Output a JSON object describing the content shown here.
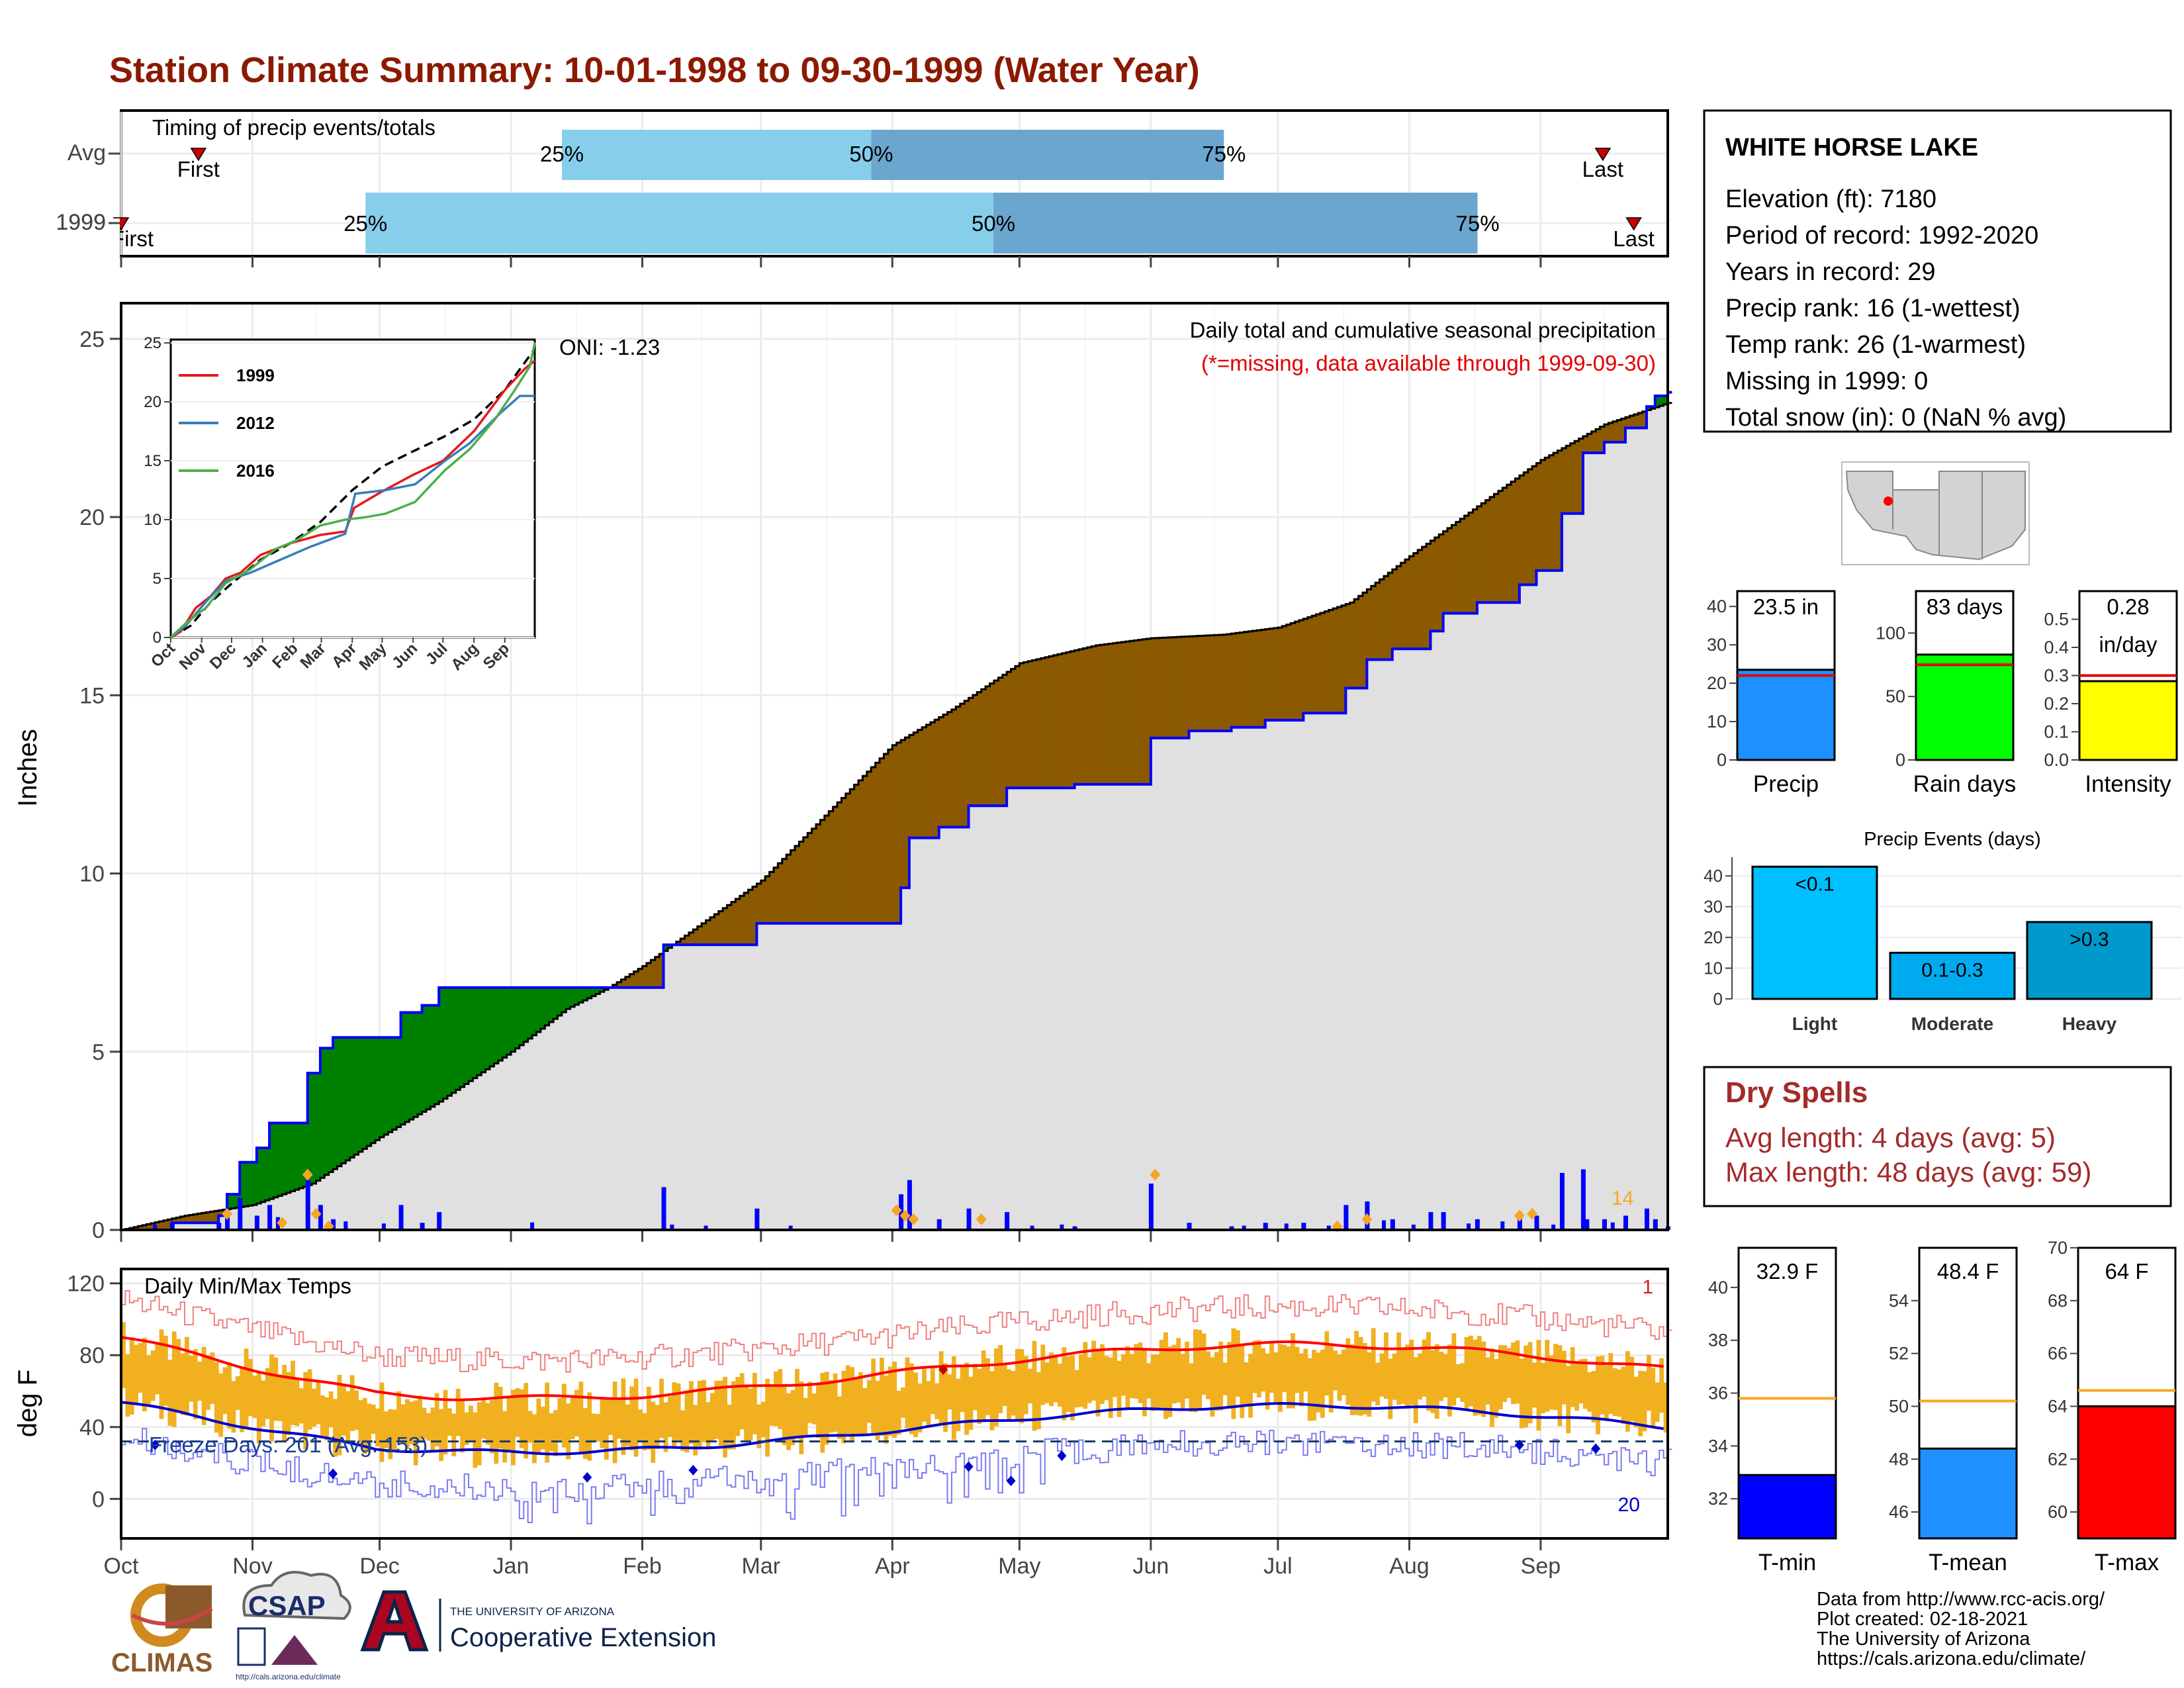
{
  "title": "Station Climate Summary: 10-01-1998 to 09-30-1999 (Water Year)",
  "timing": {
    "heading": "Timing of precip events/totals",
    "rows": [
      {
        "label": "Avg",
        "first_label": "First",
        "last_label": "Last",
        "first_x": 0.05,
        "last_x": 0.958,
        "q25": 0.285,
        "q50": 0.485,
        "q75": 0.713
      },
      {
        "label": "1999",
        "first_label": "First",
        "last_label": "Last",
        "first_x": 0.0,
        "last_x": 0.978,
        "q25": 0.158,
        "q50": 0.564,
        "q75": 0.877
      }
    ],
    "q_labels": [
      "25%",
      "50%",
      "75%"
    ]
  },
  "station": {
    "name": "WHITE HORSE LAKE",
    "lines": [
      "Elevation (ft): 7180",
      "Period of record: 1992-2020",
      "Years in record: 29",
      "Precip rank: 16 (1-wettest)",
      "Temp rank: 26 (1-warmest)",
      "Missing in 1999: 0",
      "Total snow (in): 0 (NaN % avg)"
    ]
  },
  "precip_panel": {
    "ylabel": "Inches",
    "subtitle": "Daily total and cumulative seasonal precipitation",
    "missing_note": "(*=missing, data available through 1999-09-30)",
    "oni": "ONI: -1.23",
    "corner_count": "14",
    "yticks": [
      0,
      5,
      10,
      15,
      20,
      25
    ],
    "ylim": [
      0,
      26
    ],
    "colors": {
      "wetter": "#008000",
      "drier": "#8B5A00",
      "cumulative": "#0000ff",
      "avg_fill": "#e0e0e0"
    }
  },
  "inset": {
    "yticks": [
      0,
      5,
      10,
      15,
      20,
      25
    ],
    "months": [
      "Oct",
      "Nov",
      "Dec",
      "Jan",
      "Feb",
      "Mar",
      "Apr",
      "May",
      "Jun",
      "Jul",
      "Aug",
      "Sep"
    ],
    "legend": [
      {
        "name": "1999",
        "color": "#e41a1c"
      },
      {
        "name": "2012",
        "color": "#377eb8"
      },
      {
        "name": "2016",
        "color": "#4daf4a"
      }
    ]
  },
  "temp_panel": {
    "ylabel": "deg F",
    "heading": "Daily Min/Max Temps",
    "freeze_text": "Freeze Days: 201 (Avg: 153)",
    "top_count": "1",
    "bottom_count": "20",
    "yticks": [
      0,
      40,
      80,
      120
    ],
    "ylim": [
      -22,
      128
    ]
  },
  "months": [
    "Oct",
    "Nov",
    "Dec",
    "Jan",
    "Feb",
    "Mar",
    "Apr",
    "May",
    "Jun",
    "Jul",
    "Aug",
    "Sep"
  ],
  "summary_bars": [
    {
      "label": "Precip",
      "value_text": "23.5 in",
      "value": 23.5,
      "avg": 22,
      "ymax": 44,
      "yticks": [
        0,
        10,
        20,
        30,
        40
      ],
      "tick_labels": [
        "0",
        "10",
        "20",
        "30",
        "40"
      ],
      "color": "#1e90ff"
    },
    {
      "label": "Rain days",
      "value_text": "83 days",
      "value": 83,
      "avg": 75,
      "ymax": 133,
      "yticks": [
        0,
        50,
        100
      ],
      "tick_labels": [
        "0",
        "50",
        "100"
      ],
      "color": "#00ff00"
    },
    {
      "label": "Intensity",
      "value_text": "0.28",
      "value_text2": "in/day",
      "value": 0.28,
      "avg": 0.3,
      "ymax": 0.6,
      "yticks": [
        0,
        0.1,
        0.2,
        0.3,
        0.4,
        0.5
      ],
      "tick_labels": [
        "0.0",
        "0.1",
        "0.2",
        "0.3",
        "0.4",
        "0.5"
      ],
      "color": "#ffff00"
    }
  ],
  "events": {
    "title": "Precip Events (days)",
    "yticks": [
      0,
      10,
      20,
      30,
      40
    ],
    "ymax": 45,
    "bars": [
      {
        "name": "Light",
        "range": "<0.1",
        "value": 43,
        "color": "#00bfff"
      },
      {
        "name": "Moderate",
        "range": "0.1-0.3",
        "value": 15,
        "color": "#00aaee"
      },
      {
        "name": "Heavy",
        "range": ">0.3",
        "value": 25,
        "color": "#0099cc"
      }
    ]
  },
  "dry_spells": {
    "title": "Dry Spells",
    "avg": "Avg length: 4 days (avg: 5)",
    "max": "Max length: 48 days (avg: 59)"
  },
  "temp_bars": [
    {
      "label": "T-min",
      "value_text": "32.9 F",
      "value": 32.9,
      "avg": 35.8,
      "ymin": 30.5,
      "ymax": 41.5,
      "yticks": [
        32,
        34,
        36,
        38,
        40
      ],
      "color": "#0000ff"
    },
    {
      "label": "T-mean",
      "value_text": "48.4 F",
      "value": 48.4,
      "avg": 50.2,
      "ymin": 45,
      "ymax": 56,
      "yticks": [
        46,
        48,
        50,
        52,
        54
      ],
      "color": "#1e90ff"
    },
    {
      "label": "T-max",
      "value_text": "64 F",
      "value": 64,
      "avg": 64.6,
      "ymin": 59,
      "ymax": 70,
      "yticks": [
        60,
        62,
        64,
        66,
        68,
        70
      ],
      "color": "#ff0000"
    }
  ],
  "credits": [
    "Data from http://www.rcc-acis.org/",
    "Plot created: 02-18-2021",
    "The University of Arizona",
    "https://cals.arizona.edu/climate/"
  ],
  "logos": {
    "climas": "CLIMAS",
    "csap": "CSAP",
    "csap_url": "http://cals.arizona.edu/climate",
    "ua_small": "THE UNIVERSITY OF ARIZONA",
    "ua_big": "Cooperative Extension"
  },
  "chart_data": {
    "type": "area",
    "title": "Station Climate Summary: 10-01-1998 to 09-30-1999 (Water Year)",
    "ylabel": "Inches",
    "ylim": [
      0,
      26
    ],
    "x": [
      "Oct",
      "Nov",
      "Dec",
      "Jan",
      "Feb",
      "Mar",
      "Apr",
      "May",
      "Jun",
      "Jul",
      "Aug",
      "Sep"
    ],
    "series": [
      {
        "name": "1999",
        "values": [
          0.3,
          3.0,
          6.8,
          6.8,
          8.3,
          8.6,
          12.5,
          14.5,
          15.9,
          16.2,
          19.4,
          22.9
        ]
      },
      {
        "values": [
          0.4,
          2.7,
          4.3,
          6.3,
          9.2,
          13.7,
          16.3,
          16.6,
          16.6,
          17.4,
          20.5,
          23.1
        ]
      }
    ],
    "end_value": 23.5
  }
}
